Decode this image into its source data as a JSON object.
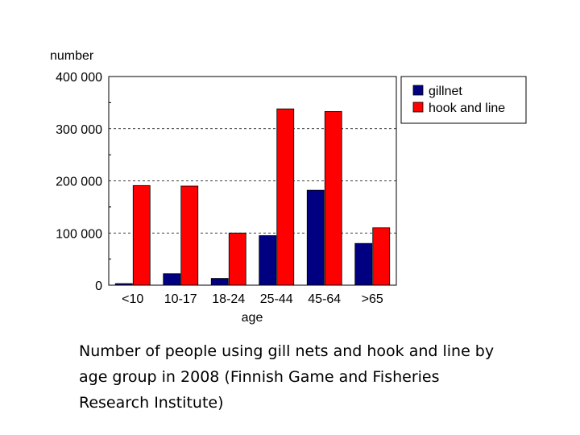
{
  "chart_data": {
    "type": "bar",
    "ylabel": "number",
    "xlabel": "age",
    "categories": [
      "<10",
      "10-17",
      "18-24",
      "25-44",
      "45-64",
      ">65"
    ],
    "series": [
      {
        "name": "gillnet",
        "color": "#000080",
        "values": [
          3000,
          22000,
          13000,
          95000,
          182000,
          80000
        ]
      },
      {
        "name": "hook and line",
        "color": "#ff0000",
        "values": [
          191000,
          190000,
          100000,
          338000,
          333000,
          110000
        ]
      }
    ],
    "ylim": [
      0,
      400000
    ],
    "yticks": [
      0,
      100000,
      200000,
      300000,
      400000
    ],
    "ytick_labels": [
      "0",
      "100 000",
      "200 000",
      "300 000",
      "400 000"
    ],
    "grid": "dashed horizontal at labeled ticks",
    "legend": "top-right"
  },
  "caption": "Number of people using gill nets and hook and line by age group in 2008 (Finnish Game and Fisheries Research Institute)"
}
